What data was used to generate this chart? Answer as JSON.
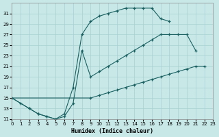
{
  "xlabel": "Humidex (Indice chaleur)",
  "bg_color": "#c8e8e8",
  "grid_color": "#a8d0d0",
  "line_color": "#1a6060",
  "xlim": [
    0,
    23
  ],
  "ylim": [
    11,
    33
  ],
  "yticks": [
    11,
    13,
    15,
    17,
    19,
    21,
    23,
    25,
    27,
    29,
    31
  ],
  "xticks": [
    0,
    1,
    2,
    3,
    4,
    5,
    6,
    7,
    8,
    9,
    10,
    11,
    12,
    13,
    14,
    15,
    16,
    17,
    18,
    19,
    20,
    21,
    22,
    23
  ],
  "curve_a_x": [
    0,
    1,
    2,
    3,
    4,
    5,
    6,
    7,
    8,
    9,
    10,
    11,
    12,
    13,
    14,
    15,
    16,
    17,
    18
  ],
  "curve_a_y": [
    15,
    14,
    13,
    12,
    11.5,
    11,
    12,
    17,
    27,
    29.5,
    30.5,
    31,
    31.5,
    32,
    32,
    32,
    32,
    30,
    29.5
  ],
  "curve_b_x": [
    0,
    2,
    3,
    4,
    5,
    6,
    7,
    8,
    9,
    10,
    11,
    12,
    13,
    14,
    15,
    16,
    17,
    18,
    19,
    20,
    21
  ],
  "curve_b_y": [
    15,
    13,
    12,
    11.5,
    11,
    11.5,
    14,
    24,
    19,
    20,
    21,
    22,
    23,
    24,
    25,
    26,
    27,
    27,
    27,
    27,
    24
  ],
  "curve_c_x": [
    0,
    9,
    10,
    11,
    12,
    13,
    14,
    15,
    16,
    17,
    18,
    19,
    20,
    21,
    22
  ],
  "curve_c_y": [
    15,
    15,
    15.5,
    16,
    16.5,
    17,
    17.5,
    18,
    18.5,
    19,
    19.5,
    20,
    20.5,
    21,
    21
  ]
}
